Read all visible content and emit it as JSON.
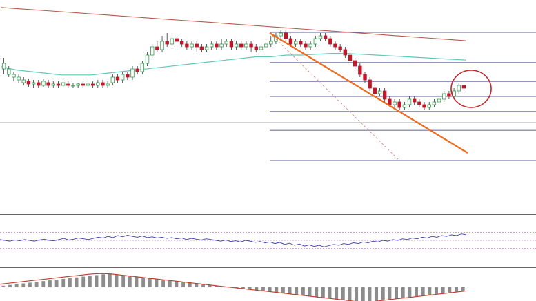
{
  "chart_data": [
    {
      "type": "candlestick",
      "panel": "price",
      "title": "",
      "xlabel": "",
      "ylabel": "",
      "ylim": [
        0,
        100
      ],
      "grid": false,
      "legend": "none",
      "candles": [
        [
          70,
          74,
          78,
          66
        ],
        [
          66,
          70,
          72,
          64
        ],
        [
          64,
          66,
          68,
          61
        ],
        [
          62,
          64,
          66,
          60
        ],
        [
          60,
          62,
          64,
          58
        ],
        [
          61,
          59,
          63,
          57
        ],
        [
          59,
          60,
          62,
          56
        ],
        [
          60,
          58,
          62,
          56
        ],
        [
          58,
          61,
          63,
          57
        ],
        [
          60,
          58,
          62,
          56
        ],
        [
          58,
          59,
          61,
          56
        ],
        [
          59,
          58,
          61,
          56
        ],
        [
          58,
          60,
          62,
          56
        ],
        [
          59,
          58,
          61,
          56
        ],
        [
          58,
          58,
          60,
          56
        ],
        [
          58,
          59,
          60,
          56
        ],
        [
          59,
          58,
          61,
          56
        ],
        [
          58,
          59,
          60,
          56
        ],
        [
          59,
          58,
          61,
          56
        ],
        [
          58,
          60,
          62,
          56
        ],
        [
          60,
          58,
          62,
          56
        ],
        [
          58,
          59,
          61,
          56
        ],
        [
          60,
          64,
          66,
          58
        ],
        [
          64,
          62,
          66,
          60
        ],
        [
          62,
          66,
          68,
          60
        ],
        [
          66,
          64,
          68,
          62
        ],
        [
          64,
          70,
          72,
          62
        ],
        [
          70,
          68,
          72,
          66
        ],
        [
          68,
          74,
          76,
          66
        ],
        [
          74,
          80,
          82,
          72
        ],
        [
          80,
          86,
          88,
          78
        ],
        [
          86,
          84,
          90,
          82
        ],
        [
          84,
          90,
          94,
          82
        ],
        [
          90,
          88,
          96,
          86
        ],
        [
          88,
          92,
          96,
          86
        ],
        [
          92,
          90,
          94,
          88
        ],
        [
          90,
          88,
          92,
          86
        ],
        [
          88,
          86,
          90,
          84
        ],
        [
          86,
          88,
          90,
          84
        ],
        [
          88,
          86,
          90,
          82
        ],
        [
          86,
          84,
          88,
          82
        ],
        [
          84,
          86,
          88,
          82
        ],
        [
          86,
          88,
          90,
          84
        ],
        [
          88,
          86,
          90,
          84
        ],
        [
          86,
          88,
          92,
          84
        ],
        [
          88,
          90,
          92,
          86
        ],
        [
          90,
          86,
          92,
          84
        ],
        [
          86,
          88,
          90,
          84
        ],
        [
          88,
          86,
          90,
          84
        ],
        [
          86,
          88,
          90,
          84
        ],
        [
          88,
          86,
          90,
          82
        ],
        [
          86,
          84,
          88,
          82
        ],
        [
          84,
          86,
          88,
          82
        ],
        [
          86,
          88,
          90,
          84
        ],
        [
          88,
          90,
          94,
          86
        ],
        [
          90,
          94,
          96,
          88
        ],
        [
          94,
          96,
          98,
          92
        ],
        [
          96,
          92,
          98,
          90
        ],
        [
          92,
          88,
          94,
          86
        ],
        [
          88,
          90,
          92,
          86
        ],
        [
          90,
          88,
          92,
          86
        ],
        [
          88,
          86,
          90,
          84
        ],
        [
          86,
          88,
          90,
          84
        ],
        [
          88,
          92,
          94,
          86
        ],
        [
          92,
          94,
          96,
          90
        ],
        [
          94,
          92,
          96,
          90
        ],
        [
          92,
          88,
          94,
          86
        ],
        [
          88,
          86,
          90,
          84
        ],
        [
          86,
          84,
          88,
          82
        ],
        [
          84,
          80,
          86,
          78
        ],
        [
          80,
          76,
          82,
          74
        ],
        [
          76,
          72,
          78,
          70
        ],
        [
          72,
          66,
          74,
          64
        ],
        [
          66,
          62,
          68,
          60
        ],
        [
          62,
          56,
          64,
          54
        ],
        [
          56,
          52,
          58,
          50
        ],
        [
          52,
          54,
          56,
          50
        ],
        [
          54,
          48,
          56,
          46
        ],
        [
          48,
          44,
          50,
          42
        ],
        [
          44,
          46,
          48,
          42
        ],
        [
          46,
          42,
          48,
          40
        ],
        [
          42,
          44,
          46,
          40
        ],
        [
          44,
          48,
          50,
          42
        ],
        [
          48,
          46,
          50,
          44
        ],
        [
          46,
          44,
          48,
          42
        ],
        [
          44,
          42,
          46,
          40
        ],
        [
          42,
          44,
          46,
          40
        ],
        [
          44,
          46,
          48,
          42
        ],
        [
          46,
          48,
          52,
          44
        ],
        [
          48,
          52,
          54,
          46
        ],
        [
          52,
          50,
          54,
          48
        ],
        [
          50,
          54,
          56,
          48
        ],
        [
          54,
          58,
          60,
          52
        ],
        [
          58,
          56,
          60,
          54
        ]
      ],
      "ema_red": [
        92,
        91.4,
        90.8,
        90.2,
        89.6,
        89,
        88.4,
        87.8,
        87.2,
        86.6,
        86,
        85.4,
        84.8,
        84.2,
        83.6,
        83,
        82.4,
        81.8,
        81.2,
        80.6,
        80,
        79.4,
        78.8,
        78.2,
        77.6,
        77,
        76.4,
        75.8,
        75.2,
        74.6,
        74,
        73.4
      ],
      "ema_teal": [
        68,
        66,
        65,
        64,
        63,
        63,
        63,
        64,
        65,
        66,
        67,
        68,
        69,
        70,
        71,
        72,
        73,
        74,
        74,
        75,
        75,
        75.5,
        76,
        76,
        75.5,
        75,
        74.5,
        74,
        73.5,
        73,
        72.5,
        72
      ],
      "fib_levels": [
        0,
        23.6,
        38.2,
        50,
        61.8,
        76.4,
        100
      ],
      "horizontal_support": 58,
      "trendline": {
        "from": [
          55,
          100
        ],
        "to": [
          93,
          42
        ]
      }
    },
    {
      "type": "line",
      "panel": "rsi",
      "title": "",
      "ylim": [
        0,
        100
      ],
      "levels": [
        70,
        50,
        30
      ],
      "values": [
        52,
        50,
        48,
        51,
        49,
        52,
        50,
        48,
        51,
        53,
        50,
        49,
        52,
        55,
        51,
        53,
        56,
        54,
        52,
        55,
        58,
        56,
        60,
        57,
        62,
        59,
        63,
        60,
        58,
        61,
        57,
        59,
        56,
        58,
        55,
        57,
        54,
        56,
        52,
        55,
        53,
        51,
        54,
        52,
        50,
        48,
        51,
        47,
        49,
        46,
        50,
        48,
        45,
        47,
        44,
        46,
        42,
        45,
        40,
        43,
        38,
        41,
        36,
        39,
        35,
        38,
        34,
        37,
        40,
        38,
        42,
        40,
        44,
        42,
        46,
        44,
        48,
        46,
        50,
        48,
        52,
        50,
        54,
        52,
        56,
        54,
        58,
        56,
        60,
        58,
        62,
        60,
        64,
        62,
        66,
        64
      ]
    },
    {
      "type": "bar",
      "panel": "macd",
      "title": "",
      "ylim": [
        -10,
        10
      ],
      "histogram": [
        1,
        1.5,
        2,
        2.5,
        3,
        3.5,
        4,
        4.5,
        5,
        5.5,
        6,
        6.5,
        7,
        7.5,
        8,
        8.5,
        9,
        8.5,
        8,
        7.5,
        7,
        6.5,
        6,
        5.5,
        5,
        4.5,
        4,
        3.5,
        3,
        2.5,
        2,
        1.5,
        1,
        0.5,
        0,
        -0.5,
        -1,
        -1.5,
        -2,
        -2.5,
        -3,
        -3.5,
        -4,
        -4.5,
        -5,
        -5.5,
        -6,
        -6.5,
        -7,
        -7.5,
        -8,
        -8.5,
        -9,
        -9.5,
        -10,
        -9.5,
        -9,
        -8.5,
        -8,
        -7.5,
        -7,
        -6.5,
        -6,
        -5.5,
        -5,
        -4.5,
        -4,
        -3.5,
        -3,
        -2.5
      ],
      "signal": [
        2,
        2.5,
        3,
        3.5,
        4,
        4.5,
        5,
        5.5,
        6,
        6.5,
        7,
        7.5,
        8,
        8.5,
        8.8,
        9,
        8.8,
        8.5,
        8,
        7.5,
        7,
        6.5,
        6,
        5.5,
        5,
        4.5,
        4,
        3.5,
        3,
        2.5,
        2,
        1.5,
        1,
        0.5,
        0,
        -0.5,
        -1,
        -1.5,
        -2,
        -2.5,
        -3,
        -3.5,
        -4,
        -4.5,
        -5,
        -5.5,
        -6,
        -6.5,
        -7,
        -7.5,
        -8,
        -8.5,
        -9,
        -9.5,
        -9.8,
        -9.5,
        -9,
        -8.5,
        -8,
        -7.5,
        -7,
        -6.5,
        -6,
        -5.5,
        -5,
        -4.5,
        -4,
        -3.5,
        -3,
        -2.5
      ]
    }
  ],
  "colors": {
    "bull_candle": "#2e9f4a",
    "bear_candle": "#c0182b",
    "wick": "#333333",
    "ema_red": "#b85a4a",
    "ema_teal": "#5ec9b5",
    "fib": "#2b2a74",
    "support": "#888888",
    "trendline": "#f06a1b",
    "trendline_dashed": "#d98880",
    "circle": "#c1272d",
    "separator": "#666666",
    "rsi_line": "#3d3da8",
    "rsi_levels": "#c27bd1",
    "macd_bar": "#8c8c8c",
    "macd_signal": "#c0392b"
  }
}
